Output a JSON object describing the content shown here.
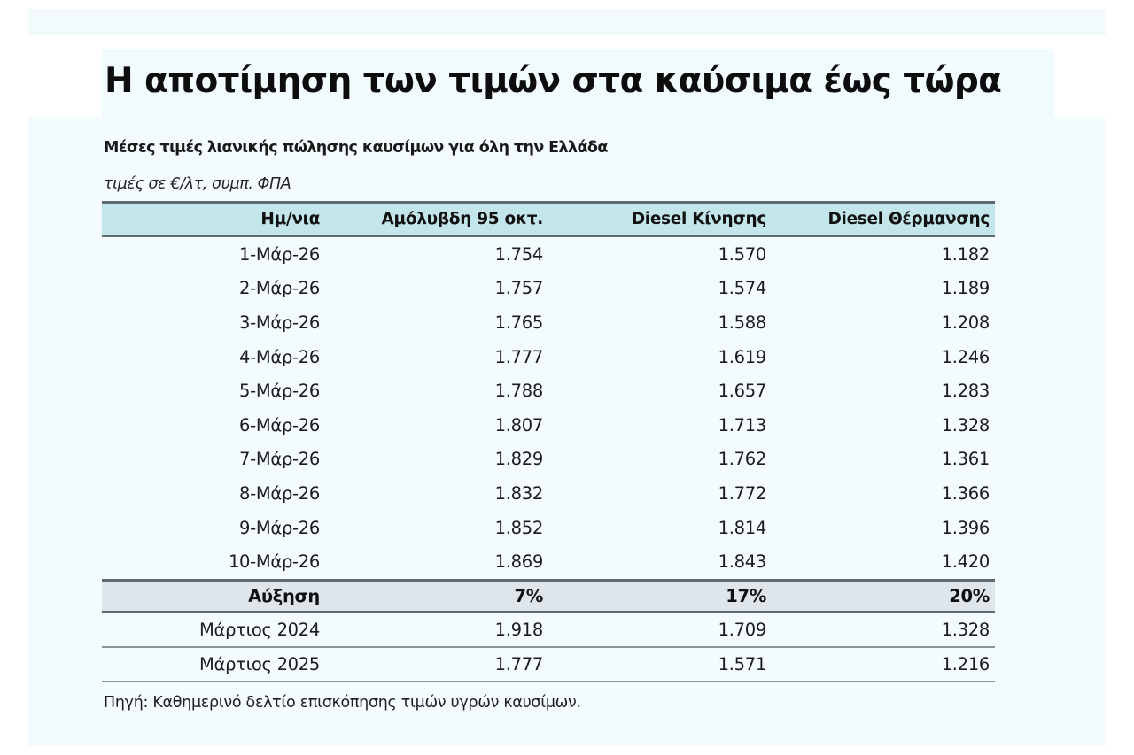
{
  "slide": {
    "title": "Η αποτίμηση των τιμών στα καύσιμα έως τώρα",
    "subtitle": "Μέσες τιμές λιανικής πώλησης καυσίμων για όλη την Ελλάδα",
    "units": "τιμές σε €/λτ, συμπ. ΦΠΑ",
    "source": "Πηγή: Καθημερινό δελτίο επισκόπησης τιμών υγρών καυσίμων."
  },
  "table": {
    "headers": [
      "Ημ/νια",
      "Αμόλυβδη 95 οκτ.",
      "Diesel Κίνησης",
      "Diesel Θέρμανσης"
    ],
    "rows": [
      [
        "1-Μάρ-26",
        "1.754",
        "1.570",
        "1.182"
      ],
      [
        "2-Μάρ-26",
        "1.757",
        "1.574",
        "1.189"
      ],
      [
        "3-Μάρ-26",
        "1.765",
        "1.588",
        "1.208"
      ],
      [
        "4-Μάρ-26",
        "1.777",
        "1.619",
        "1.246"
      ],
      [
        "5-Μάρ-26",
        "1.788",
        "1.657",
        "1.283"
      ],
      [
        "6-Μάρ-26",
        "1.807",
        "1.713",
        "1.328"
      ],
      [
        "7-Μάρ-26",
        "1.829",
        "1.762",
        "1.361"
      ],
      [
        "8-Μάρ-26",
        "1.832",
        "1.772",
        "1.366"
      ],
      [
        "9-Μάρ-26",
        "1.852",
        "1.814",
        "1.396"
      ],
      [
        "10-Μάρ-26",
        "1.869",
        "1.843",
        "1.420"
      ]
    ],
    "increase": [
      "Αύξηση",
      "7%",
      "17%",
      "20%"
    ],
    "reference": [
      [
        "Μάρτιος 2024",
        "1.918",
        "1.709",
        "1.328"
      ],
      [
        "Μάρτιος 2025",
        "1.777",
        "1.571",
        "1.216"
      ]
    ]
  },
  "colors": {
    "header_bg": "#c3e6ea",
    "increase_bg": "#dfe6eb",
    "panel_bg": "#f3fbfe",
    "rule": "#5e6a70"
  }
}
